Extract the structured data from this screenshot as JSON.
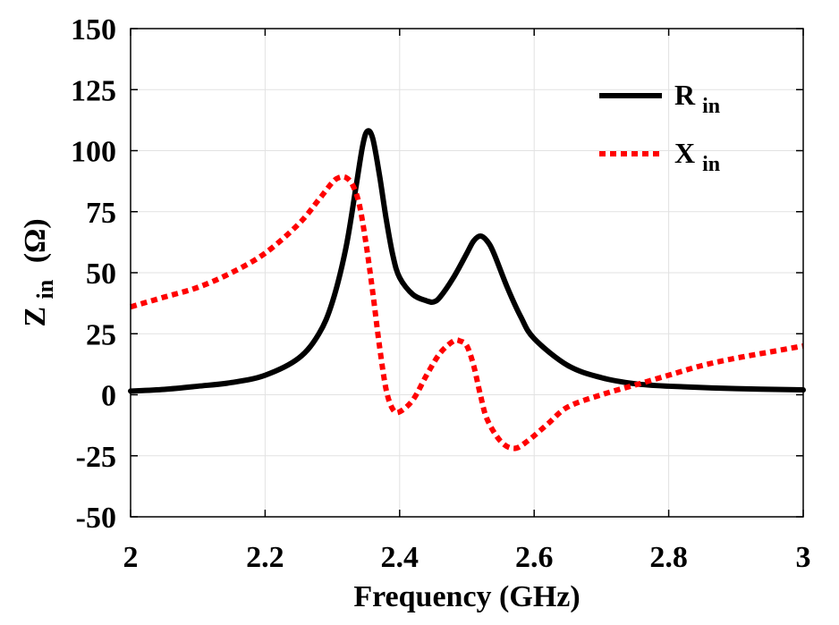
{
  "chart_data": {
    "type": "line",
    "title": "",
    "xlabel": "Frequency (GHz)",
    "ylabel": {
      "main": "Z",
      "subscript": "in",
      "unit": "(Ω)"
    },
    "xlim": [
      2,
      3
    ],
    "ylim": [
      -50,
      150
    ],
    "grid": true,
    "legend_position": "top-right",
    "x_ticks": [
      2,
      2.2,
      2.4,
      2.6,
      2.8,
      3
    ],
    "x_tick_labels": [
      "2",
      "2.2",
      "2.4",
      "2.6",
      "2.8",
      "3"
    ],
    "y_ticks": [
      -50,
      -25,
      0,
      25,
      50,
      75,
      100,
      125,
      150
    ],
    "y_tick_labels": [
      "-50",
      "-25",
      "0",
      "25",
      "50",
      "75",
      "100",
      "125",
      "150"
    ],
    "series": [
      {
        "name": "R",
        "name_subscript": "in",
        "color": "#000000",
        "style": "solid",
        "x": [
          2.0,
          2.05,
          2.1,
          2.15,
          2.2,
          2.25,
          2.28,
          2.3,
          2.32,
          2.335,
          2.345,
          2.352,
          2.36,
          2.37,
          2.38,
          2.39,
          2.4,
          2.42,
          2.44,
          2.45,
          2.46,
          2.48,
          2.5,
          2.51,
          2.52,
          2.53,
          2.54,
          2.56,
          2.58,
          2.6,
          2.65,
          2.7,
          2.75,
          2.8,
          2.9,
          3.0
        ],
        "y": [
          1.5,
          2.2,
          3.5,
          5.0,
          8.0,
          15.0,
          25.0,
          38.0,
          60.0,
          85.0,
          102.0,
          108.0,
          105.0,
          90.0,
          72.0,
          57.0,
          48.0,
          41.0,
          38.5,
          38.0,
          40.0,
          48.0,
          58.0,
          63.0,
          65.0,
          63.0,
          58.0,
          44.0,
          32.0,
          23.0,
          12.0,
          7.0,
          4.5,
          3.5,
          2.5,
          2.0
        ]
      },
      {
        "name": "X",
        "name_subscript": "in",
        "color": "#ff0000",
        "style": "dotted",
        "x": [
          2.0,
          2.05,
          2.1,
          2.15,
          2.2,
          2.25,
          2.28,
          2.3,
          2.31,
          2.32,
          2.33,
          2.34,
          2.35,
          2.36,
          2.37,
          2.38,
          2.39,
          2.4,
          2.42,
          2.44,
          2.46,
          2.48,
          2.49,
          2.5,
          2.51,
          2.52,
          2.53,
          2.55,
          2.57,
          2.59,
          2.62,
          2.65,
          2.7,
          2.75,
          2.8,
          2.85,
          2.9,
          2.95,
          3.0
        ],
        "y": [
          36.0,
          40.0,
          44.0,
          50.0,
          58.0,
          70.0,
          80.0,
          87.0,
          89.0,
          89.0,
          86.0,
          78.0,
          62.0,
          42.0,
          20.0,
          2.0,
          -6.0,
          -7.0,
          -2.0,
          8.0,
          17.0,
          22.0,
          22.0,
          20.0,
          12.0,
          0.0,
          -10.0,
          -19.0,
          -22.0,
          -19.0,
          -12.0,
          -5.0,
          0.0,
          4.0,
          8.0,
          12.0,
          15.0,
          17.5,
          20.0
        ]
      }
    ]
  }
}
